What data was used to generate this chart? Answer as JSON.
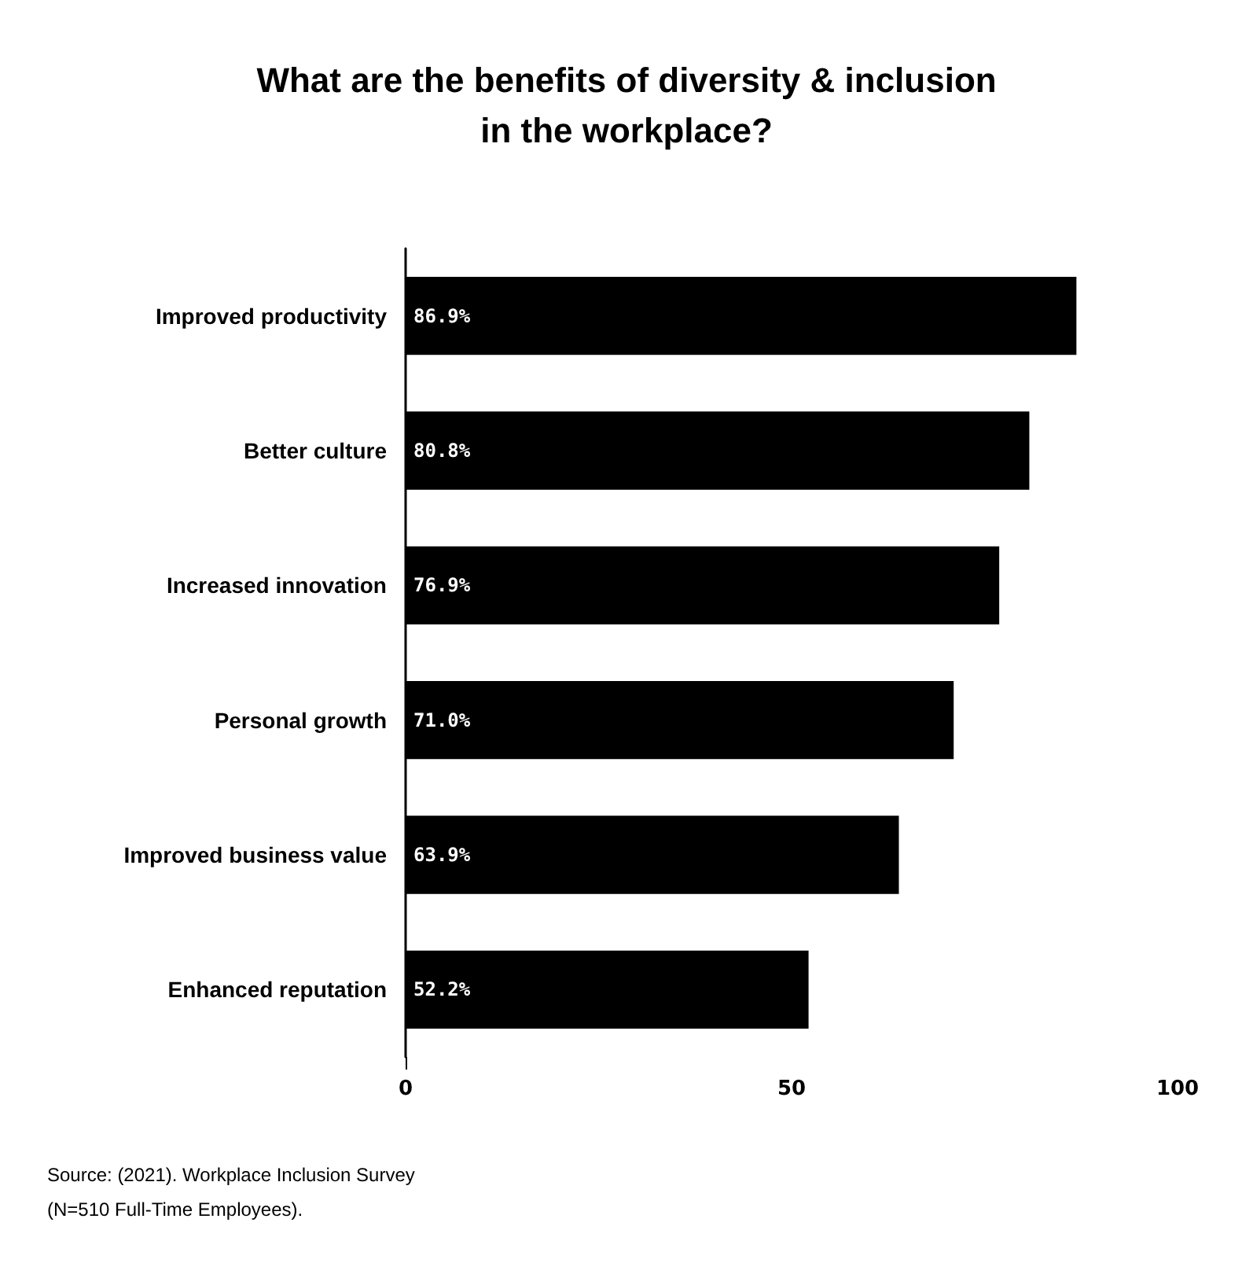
{
  "chart_data": {
    "type": "bar",
    "orientation": "horizontal",
    "title": "What are the benefits of diversity & inclusion\nin the workplace?",
    "categories": [
      "Improved productivity",
      "Better culture",
      "Increased innovation",
      "Personal growth",
      "Improved business value",
      "Enhanced reputation"
    ],
    "values": [
      86.9,
      80.8,
      76.9,
      71.0,
      63.9,
      52.2
    ],
    "value_labels": [
      "86.9%",
      "80.8%",
      "76.9%",
      "71.0%",
      "63.9%",
      "52.2%"
    ],
    "color": "#000000",
    "xlim": [
      0,
      100
    ],
    "xticks": [
      0,
      50,
      100
    ],
    "grid": false,
    "annotations": [
      "Source: (2021). Workplace Inclusion Survey\n(N=510 Full-Time Employees)."
    ]
  }
}
